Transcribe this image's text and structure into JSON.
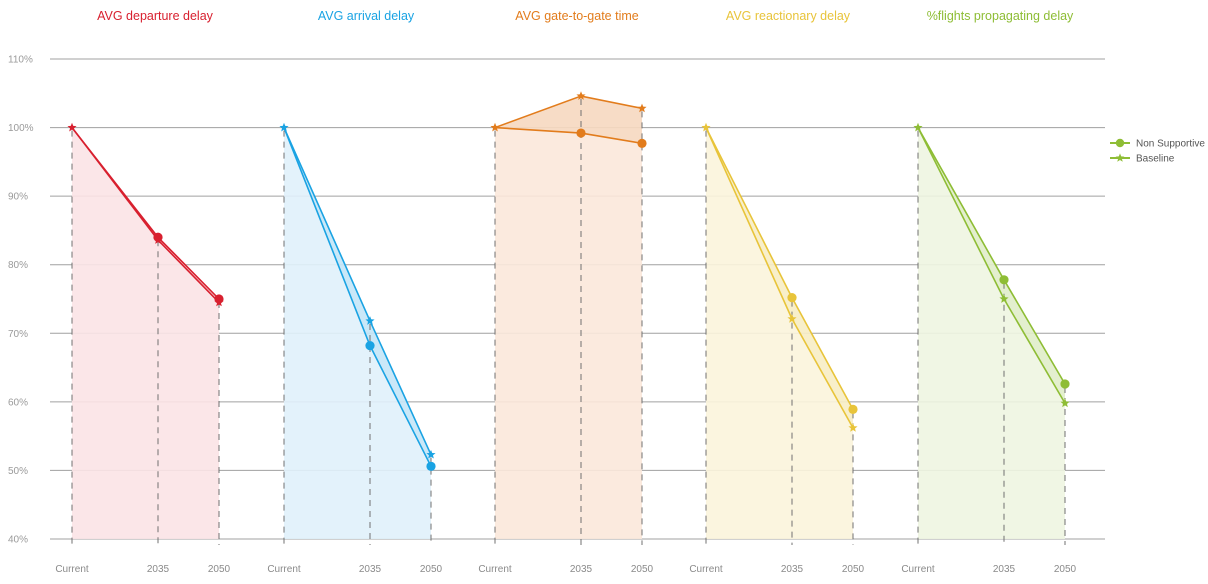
{
  "chart_data": {
    "type": "line",
    "title": "",
    "ylim": [
      40,
      110
    ],
    "y_ticks": [
      "40%",
      "50%",
      "60%",
      "70%",
      "80%",
      "90%",
      "100%",
      "110%"
    ],
    "y_tick_values": [
      40,
      50,
      60,
      70,
      80,
      90,
      100,
      110
    ],
    "grid": true,
    "legend_position": "right",
    "legend": [
      {
        "name": "Non Supportive",
        "marker": "circle"
      },
      {
        "name": "Baseline",
        "marker": "star"
      }
    ],
    "panels": [
      {
        "title": "AVG departure delay",
        "color": "#d8202f",
        "fill": "#fbe3e6",
        "categories": [
          "Current",
          "2035",
          "2050"
        ],
        "series": [
          {
            "name": "Non Supportive",
            "values": [
              100,
              84,
              75
            ]
          },
          {
            "name": "Baseline",
            "values": [
              100,
              83.6,
              74.5
            ]
          }
        ]
      },
      {
        "title": "AVG arrival delay",
        "color": "#1aa3e3",
        "fill": "#e0f1fb",
        "categories": [
          "Current",
          "2035",
          "2050"
        ],
        "series": [
          {
            "name": "Non Supportive",
            "values": [
              100,
              68.2,
              50.6
            ]
          },
          {
            "name": "Baseline",
            "values": [
              100,
              71.8,
              52.3
            ]
          }
        ]
      },
      {
        "title": "AVG gate-to-gate time",
        "color": "#e27c1c",
        "fill": "#fbe8da",
        "categories": [
          "Current",
          "2035",
          "2050"
        ],
        "series": [
          {
            "name": "Non Supportive",
            "values": [
              100,
              99.2,
              97.7
            ]
          },
          {
            "name": "Baseline",
            "values": [
              100,
              104.6,
              102.8
            ]
          }
        ]
      },
      {
        "title": "AVG reactionary delay",
        "color": "#e8c43a",
        "fill": "#fbf4dc",
        "categories": [
          "Current",
          "2035",
          "2050"
        ],
        "series": [
          {
            "name": "Non Supportive",
            "values": [
              100,
              75.2,
              58.9
            ]
          },
          {
            "name": "Baseline",
            "values": [
              100,
              72.1,
              56.2
            ]
          }
        ]
      },
      {
        "title": "%flights propagating delay",
        "color": "#8ebd35",
        "fill": "#eef5e1",
        "categories": [
          "Current",
          "2035",
          "2050"
        ],
        "series": [
          {
            "name": "Non Supportive",
            "values": [
              100,
              77.8,
              62.6
            ]
          },
          {
            "name": "Baseline",
            "values": [
              100,
              75,
              59.8
            ]
          }
        ]
      }
    ]
  }
}
